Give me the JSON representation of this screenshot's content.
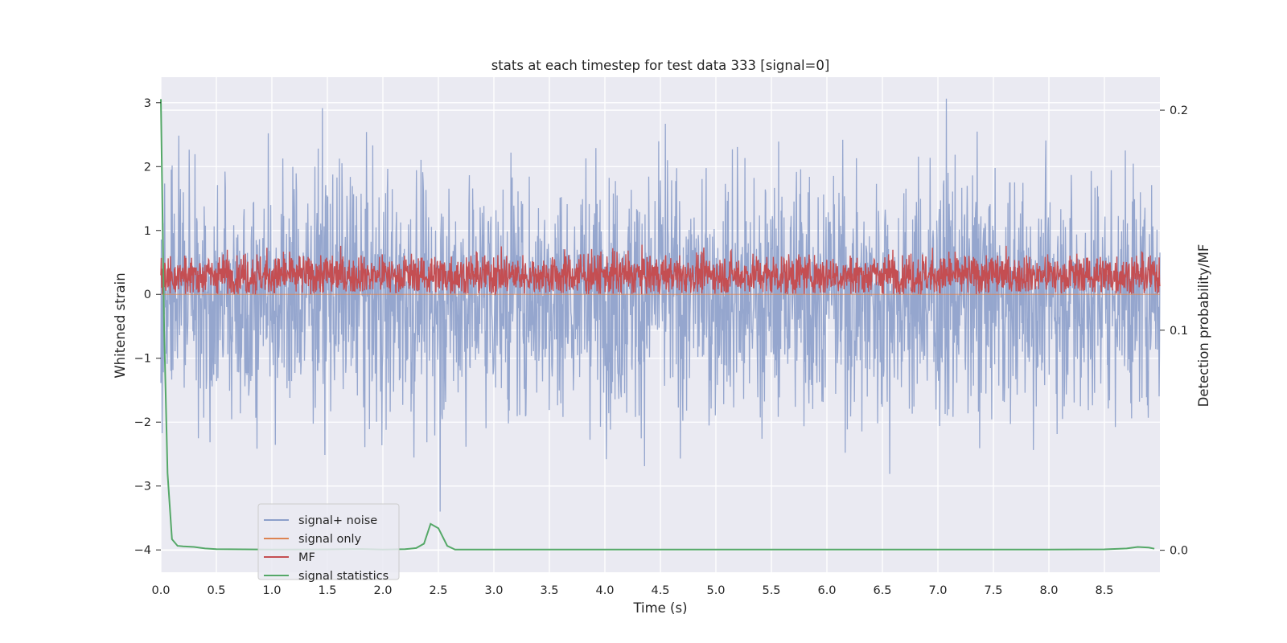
{
  "chart_data": {
    "type": "line",
    "title": "stats at each timestep for test data 333 [signal=0]",
    "xlabel": "Time (s)",
    "ylabel": "Whitened strain",
    "y2label": "Detection probability/MF",
    "xlim": [
      0.0,
      9.0
    ],
    "ylim": [
      -4.35,
      3.4
    ],
    "y2lim": [
      -0.01,
      0.215
    ],
    "xticks": [
      0.0,
      0.5,
      1.0,
      1.5,
      2.0,
      2.5,
      3.0,
      3.5,
      4.0,
      4.5,
      5.0,
      5.5,
      6.0,
      6.5,
      7.0,
      7.5,
      8.0,
      8.5
    ],
    "xtick_labels": [
      "0.0",
      "0.5",
      "1.0",
      "1.5",
      "2.0",
      "2.5",
      "3.0",
      "3.5",
      "4.0",
      "4.5",
      "5.0",
      "5.5",
      "6.0",
      "6.5",
      "7.0",
      "7.5",
      "8.0",
      "8.5"
    ],
    "yticks": [
      3,
      2,
      1,
      0,
      -1,
      -2,
      -3,
      -4
    ],
    "ytick_labels": [
      "3",
      "2",
      "1",
      "0",
      "−1",
      "−2",
      "−3",
      "−4"
    ],
    "y2ticks": [
      0.2,
      0.1,
      0.0
    ],
    "y2tick_labels": [
      "0.2",
      "0.1",
      "0.0"
    ],
    "legend": {
      "location": "lower-left",
      "entries": [
        {
          "label": "signal+ noise",
          "color": "#8c9fca"
        },
        {
          "label": "signal only",
          "color": "#dd8452"
        },
        {
          "label": "MF",
          "color": "#c44e52"
        },
        {
          "label": "signal statistics",
          "color": "#55a868"
        }
      ]
    },
    "series": [
      {
        "name": "signal+ noise",
        "axis": "left",
        "color": "#8c9fca",
        "description": "whitened noise, roughly uniform amplitude about ±2 with peaks to ~3",
        "amplitude": 2.0,
        "peak": 3.1
      },
      {
        "name": "signal only",
        "axis": "left",
        "color": "#dd8452",
        "values": "zero (no signal)"
      },
      {
        "name": "MF",
        "axis": "left",
        "color": "#c44e52",
        "mean": 0.3,
        "range": [
          0.0,
          1.0
        ]
      },
      {
        "name": "signal statistics",
        "axis": "right",
        "color": "#55a868",
        "x": [
          0.0,
          0.03,
          0.06,
          0.1,
          0.15,
          0.2,
          0.3,
          0.4,
          0.5,
          1.0,
          1.5,
          1.8,
          2.0,
          2.2,
          2.3,
          2.37,
          2.43,
          2.5,
          2.58,
          2.65,
          3.0,
          4.0,
          5.0,
          6.0,
          7.0,
          8.0,
          8.5,
          8.7,
          8.8,
          8.9,
          8.95
        ],
        "y": [
          0.205,
          0.1,
          0.035,
          0.005,
          0.002,
          0.0018,
          0.0015,
          0.0008,
          0.0005,
          0.0003,
          0.0004,
          0.0006,
          0.0003,
          0.0005,
          0.001,
          0.003,
          0.012,
          0.01,
          0.002,
          0.0003,
          0.0003,
          0.0003,
          0.0003,
          0.0003,
          0.0003,
          0.0003,
          0.0004,
          0.0008,
          0.0015,
          0.0012,
          0.0007
        ]
      }
    ],
    "grid": true
  }
}
